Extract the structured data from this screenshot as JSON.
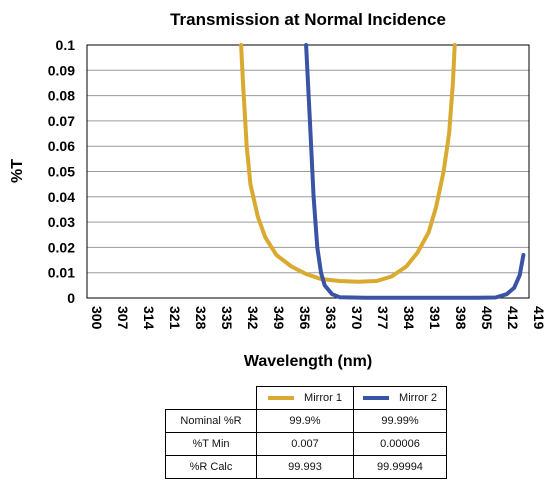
{
  "chart_data": {
    "type": "line",
    "title": "Transmission at Normal Incidence",
    "xlabel": "Wavelength (nm)",
    "ylabel": "%T",
    "xlim": [
      300,
      419
    ],
    "ylim": [
      0,
      0.1
    ],
    "x_ticks": [
      "300",
      "307",
      "314",
      "321",
      "328",
      "335",
      "342",
      "349",
      "356",
      "363",
      "370",
      "377",
      "384",
      "391",
      "398",
      "405",
      "412",
      "419"
    ],
    "y_ticks": [
      "0",
      "0.01",
      "0.02",
      "0.03",
      "0.04",
      "0.05",
      "0.06",
      "0.07",
      "0.08",
      "0.09",
      "0.1"
    ],
    "grid": "horizontal",
    "series": [
      {
        "name": "Mirror 1",
        "color": "#d9a930",
        "points": [
          [
            341.5,
            0.1
          ],
          [
            342,
            0.085
          ],
          [
            343,
            0.06
          ],
          [
            344,
            0.045
          ],
          [
            346,
            0.032
          ],
          [
            348,
            0.024
          ],
          [
            351,
            0.017
          ],
          [
            355,
            0.0125
          ],
          [
            359,
            0.0095
          ],
          [
            363,
            0.0075
          ],
          [
            368,
            0.0067
          ],
          [
            373,
            0.0064
          ],
          [
            378,
            0.0067
          ],
          [
            382,
            0.0085
          ],
          [
            386,
            0.0125
          ],
          [
            389,
            0.018
          ],
          [
            392,
            0.026
          ],
          [
            394,
            0.036
          ],
          [
            396,
            0.05
          ],
          [
            397.5,
            0.065
          ],
          [
            398.5,
            0.085
          ],
          [
            399,
            0.1
          ]
        ]
      },
      {
        "name": "Mirror 2",
        "color": "#3a53a4",
        "points": [
          [
            359,
            0.1
          ],
          [
            360,
            0.07
          ],
          [
            361,
            0.04
          ],
          [
            362,
            0.02
          ],
          [
            363,
            0.01
          ],
          [
            364,
            0.005
          ],
          [
            366,
            0.0015
          ],
          [
            368,
            0.0003
          ],
          [
            375,
            6e-05
          ],
          [
            390,
            6e-05
          ],
          [
            405,
            0.0001
          ],
          [
            410,
            0.0002
          ],
          [
            413,
            0.0015
          ],
          [
            415,
            0.004
          ],
          [
            416.5,
            0.009
          ],
          [
            417.5,
            0.017
          ]
        ]
      }
    ]
  },
  "table": {
    "columns": [
      "Mirror 1",
      "Mirror 2"
    ],
    "rows": [
      {
        "label": "Nominal %R",
        "values": [
          "99.9%",
          "99.99%"
        ]
      },
      {
        "label": "%T Min",
        "values": [
          "0.007",
          "0.00006"
        ]
      },
      {
        "label": "%R Calc",
        "values": [
          "99.993",
          "99.99994"
        ]
      }
    ]
  }
}
